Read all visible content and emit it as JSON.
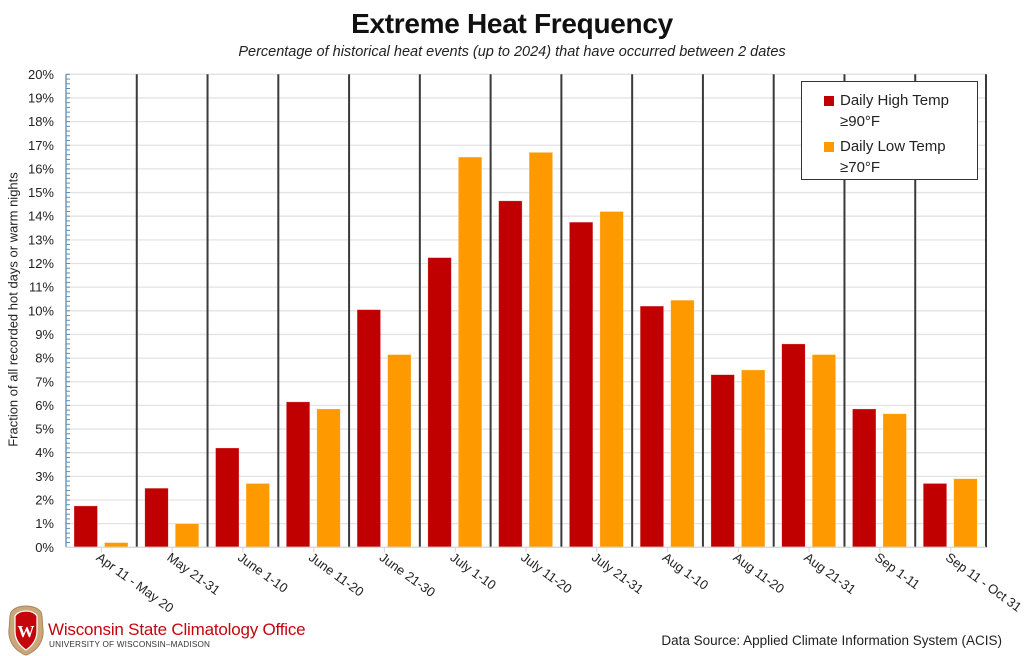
{
  "chart_data": {
    "type": "bar",
    "title": "Extreme Heat Frequency",
    "subtitle": "Percentage of historical heat events (up to 2024) that have occurred between 2 dates",
    "xlabel": "",
    "ylabel": "Fraction of all recorded hot days or warm nights",
    "ylim": [
      0,
      20
    ],
    "y_unit": "%",
    "y_ticks": [
      "0%",
      "1%",
      "2%",
      "3%",
      "4%",
      "5%",
      "6%",
      "7%",
      "8%",
      "9%",
      "10%",
      "11%",
      "12%",
      "13%",
      "14%",
      "15%",
      "16%",
      "17%",
      "18%",
      "19%",
      "20%"
    ],
    "grid": true,
    "legend_position": "top-right",
    "categories": [
      "Apr 11 - May 20",
      "May 21-31",
      "June 1-10",
      "June 11-20",
      "June 21-30",
      "July 1-10",
      "July 11-20",
      "July 21-31",
      "Aug 1-10",
      "Aug 11-20",
      "Aug 21-31",
      "Sep 1-11",
      "Sep 11 - Oct 31"
    ],
    "series": [
      {
        "name": "Daily High Temp ≥90°F",
        "color": "#c00000",
        "values": [
          1.75,
          2.5,
          4.2,
          6.15,
          10.05,
          12.25,
          14.65,
          13.75,
          10.2,
          7.3,
          8.6,
          5.85,
          2.7
        ]
      },
      {
        "name": "Daily Low Temp ≥70°F",
        "color": "#ff9900",
        "values": [
          0.2,
          1.0,
          2.7,
          5.85,
          8.15,
          16.5,
          16.7,
          14.2,
          10.45,
          7.5,
          8.15,
          5.65,
          2.9
        ]
      }
    ]
  },
  "legend": {
    "items": [
      {
        "line1": "Daily High Temp",
        "line2": "≥90°F",
        "color": "#c00000"
      },
      {
        "line1": "Daily Low Temp",
        "line2": "≥70°F",
        "color": "#ff9900"
      }
    ]
  },
  "footer": {
    "org_name": "Wisconsin State Climatology Office",
    "org_sub": "UNIVERSITY OF WISCONSIN–MADISON",
    "logo_letter": "W",
    "data_source": "Data Source: Applied Climate Information System (ACIS)"
  }
}
